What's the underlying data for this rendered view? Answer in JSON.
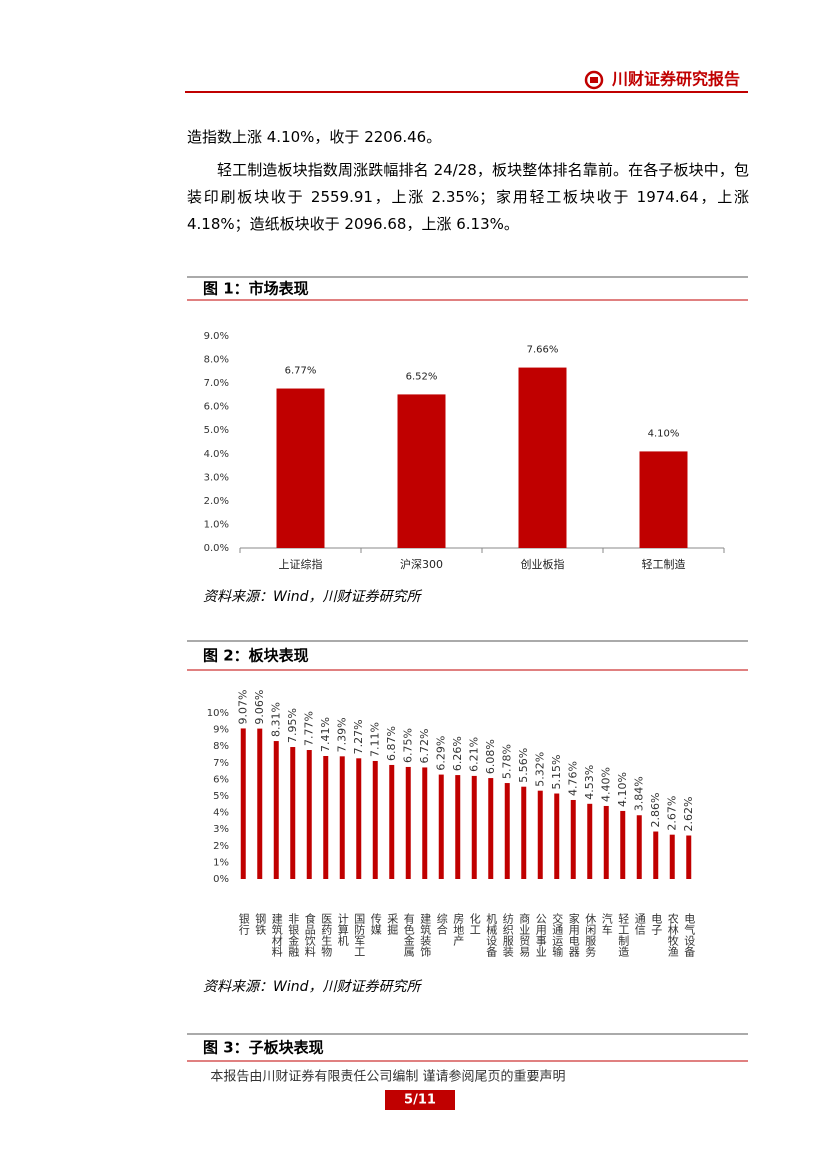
{
  "header": {
    "title": "川财证券研究报告"
  },
  "paragraphs": [
    "造指数上涨 4.10%，收于 2206.46。",
    "轻工制造板块指数周涨跌幅排名 24/28，板块整体排名靠前。在各子板块中，包装印刷板块收于 2559.91，上涨 2.35%；家用轻工板块收于 1974.64，上涨 4.18%；造纸板块收于 2096.68，上涨 6.13%。"
  ],
  "figures": [
    {
      "caption": "图 1：市场表现",
      "source": "资料来源：Wind，川财证券研究所"
    },
    {
      "caption": "图 2：板块表现",
      "source": "资料来源：Wind，川财证券研究所"
    },
    {
      "caption": "图 3：子板块表现"
    }
  ],
  "chart_data": [
    {
      "type": "bar",
      "categories": [
        "上证综指",
        "沪深300",
        "创业板指",
        "轻工制造"
      ],
      "values": [
        6.77,
        6.52,
        7.66,
        4.1
      ],
      "value_labels": [
        "6.77%",
        "6.52%",
        "7.66%",
        "4.10%"
      ],
      "color": "#c00000",
      "ylim": [
        0,
        9
      ],
      "yticks": [
        {
          "value": 0,
          "label": "0.0%"
        },
        {
          "value": 1,
          "label": "1.0%"
        },
        {
          "value": 2,
          "label": "2.0%"
        },
        {
          "value": 3,
          "label": "3.0%"
        },
        {
          "value": 4,
          "label": "4.0%"
        },
        {
          "value": 5,
          "label": "5.0%"
        },
        {
          "value": 6,
          "label": "6.0%"
        },
        {
          "value": 7,
          "label": "7.0%"
        },
        {
          "value": 8,
          "label": "8.0%"
        },
        {
          "value": 9,
          "label": "9.0%"
        }
      ],
      "grid": false
    },
    {
      "type": "bar",
      "categories": [
        "银行",
        "钢铁",
        "建筑材料",
        "非银金融",
        "食品饮料",
        "医药生物",
        "计算机",
        "国防军工",
        "传媒",
        "采掘",
        "有色金属",
        "建筑装饰",
        "综合",
        "房地产",
        "化工",
        "机械设备",
        "纺织服装",
        "商业贸易",
        "公用事业",
        "交通运输",
        "家用电器",
        "休闲服务",
        "汽车",
        "轻工制造",
        "通信",
        "电子",
        "农林牧渔",
        "电气设备"
      ],
      "values": [
        9.07,
        9.06,
        8.31,
        7.95,
        7.77,
        7.41,
        7.39,
        7.27,
        7.11,
        6.87,
        6.75,
        6.72,
        6.29,
        6.26,
        6.21,
        6.08,
        5.78,
        5.56,
        5.32,
        5.15,
        4.76,
        4.53,
        4.4,
        4.1,
        3.84,
        2.86,
        2.67,
        2.62
      ],
      "value_labels": [
        "9.07%",
        "9.06%",
        "8.31%",
        "7.95%",
        "7.77%",
        "7.41%",
        "7.39%",
        "7.27%",
        "7.11%",
        "6.87%",
        "6.75%",
        "6.72%",
        "6.29%",
        "6.26%",
        "6.21%",
        "6.08%",
        "5.78%",
        "5.56%",
        "5.32%",
        "5.15%",
        "4.76%",
        "4.53%",
        "4.40%",
        "4.10%",
        "3.84%",
        "2.86%",
        "2.67%",
        "2.62%"
      ],
      "color": "#c00000",
      "ylim": [
        0,
        10
      ],
      "yticks": [
        {
          "value": 0,
          "label": "0%"
        },
        {
          "value": 1,
          "label": "1%"
        },
        {
          "value": 2,
          "label": "2%"
        },
        {
          "value": 3,
          "label": "3%"
        },
        {
          "value": 4,
          "label": "4%"
        },
        {
          "value": 5,
          "label": "5%"
        },
        {
          "value": 6,
          "label": "6%"
        },
        {
          "value": 7,
          "label": "7%"
        },
        {
          "value": 8,
          "label": "8%"
        },
        {
          "value": 9,
          "label": "9%"
        },
        {
          "value": 10,
          "label": "10%"
        }
      ],
      "grid": false
    }
  ],
  "footer": {
    "disclaimer": "本报告由川财证券有限责任公司编制 谨请参阅尾页的重要声明",
    "page": "5/11"
  }
}
